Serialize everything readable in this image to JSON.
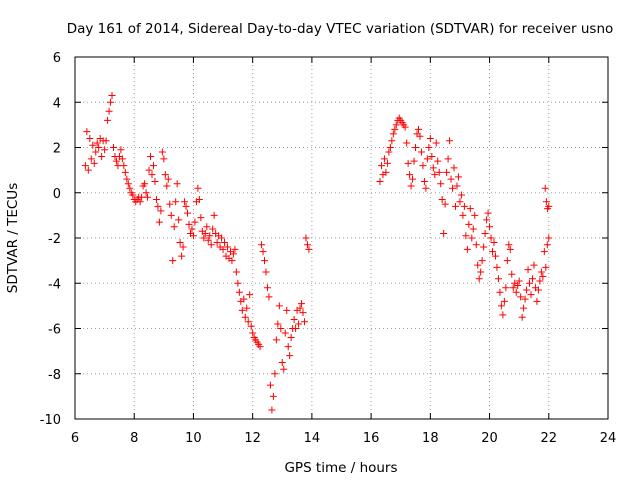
{
  "chart_data": {
    "type": "scatter",
    "title": "Day 161 of 2014, Sidereal Day-to-day VTEC variation (SDTVAR) for receiver usno",
    "xlabel": "GPS time / hours",
    "ylabel": "SDTVAR / TECUs",
    "xlim": [
      6,
      24
    ],
    "ylim": [
      -10,
      6
    ],
    "xticks": [
      "6",
      "8",
      "10",
      "12",
      "14",
      "16",
      "18",
      "20",
      "22",
      "24"
    ],
    "yticks": [
      "-10",
      "-8",
      "-6",
      "-4",
      "-2",
      "0",
      "2",
      "4",
      "6"
    ],
    "grid": true,
    "marker": "+",
    "marker_color": "#ff0000",
    "series": [
      {
        "name": "SDTVAR",
        "points": [
          [
            6.35,
            1.2
          ],
          [
            6.4,
            2.7
          ],
          [
            6.45,
            1.0
          ],
          [
            6.5,
            2.4
          ],
          [
            6.55,
            1.5
          ],
          [
            6.6,
            2.1
          ],
          [
            6.65,
            1.3
          ],
          [
            6.7,
            1.8
          ],
          [
            6.75,
            2.2
          ],
          [
            6.8,
            2.0
          ],
          [
            6.85,
            2.4
          ],
          [
            6.9,
            1.6
          ],
          [
            6.95,
            2.3
          ],
          [
            7.0,
            1.9
          ],
          [
            7.05,
            2.3
          ],
          [
            7.1,
            3.2
          ],
          [
            7.15,
            3.6
          ],
          [
            7.2,
            4.0
          ],
          [
            7.25,
            4.3
          ],
          [
            7.3,
            2.0
          ],
          [
            7.35,
            1.6
          ],
          [
            7.4,
            1.4
          ],
          [
            7.45,
            1.2
          ],
          [
            7.5,
            1.6
          ],
          [
            7.55,
            1.9
          ],
          [
            7.6,
            1.5
          ],
          [
            7.65,
            1.2
          ],
          [
            7.7,
            0.9
          ],
          [
            7.75,
            0.6
          ],
          [
            7.8,
            0.4
          ],
          [
            7.85,
            0.2
          ],
          [
            7.9,
            0.0
          ],
          [
            7.95,
            -0.1
          ],
          [
            8.0,
            -0.3
          ],
          [
            8.05,
            -0.4
          ],
          [
            8.1,
            -0.3
          ],
          [
            8.15,
            -0.2
          ],
          [
            8.2,
            -0.4
          ],
          [
            8.25,
            -0.2
          ],
          [
            8.3,
            0.3
          ],
          [
            8.35,
            0.4
          ],
          [
            8.4,
            0.0
          ],
          [
            8.45,
            -0.2
          ],
          [
            8.5,
            1.0
          ],
          [
            8.55,
            1.6
          ],
          [
            8.6,
            0.8
          ],
          [
            8.65,
            1.2
          ],
          [
            8.7,
            0.5
          ],
          [
            8.75,
            -0.3
          ],
          [
            8.8,
            -0.6
          ],
          [
            8.85,
            -1.3
          ],
          [
            8.9,
            -0.8
          ],
          [
            8.95,
            1.8
          ],
          [
            9.0,
            1.5
          ],
          [
            9.05,
            0.8
          ],
          [
            9.1,
            0.3
          ],
          [
            9.15,
            0.6
          ],
          [
            9.2,
            -0.5
          ],
          [
            9.25,
            -1.0
          ],
          [
            9.3,
            -3.0
          ],
          [
            9.35,
            -1.5
          ],
          [
            9.4,
            -0.4
          ],
          [
            9.45,
            0.4
          ],
          [
            9.5,
            -1.2
          ],
          [
            9.55,
            -2.2
          ],
          [
            9.6,
            -2.8
          ],
          [
            9.65,
            -2.4
          ],
          [
            9.7,
            -0.4
          ],
          [
            9.75,
            -0.6
          ],
          [
            9.8,
            -0.9
          ],
          [
            9.85,
            -1.4
          ],
          [
            9.9,
            -1.8
          ],
          [
            9.95,
            -1.6
          ],
          [
            10.0,
            -1.9
          ],
          [
            10.05,
            -1.3
          ],
          [
            10.1,
            -0.4
          ],
          [
            10.15,
            0.2
          ],
          [
            10.2,
            -0.3
          ],
          [
            10.25,
            -1.1
          ],
          [
            10.3,
            -1.7
          ],
          [
            10.35,
            -2.0
          ],
          [
            10.4,
            -1.8
          ],
          [
            10.45,
            -1.5
          ],
          [
            10.5,
            -2.1
          ],
          [
            10.55,
            -1.9
          ],
          [
            10.6,
            -2.3
          ],
          [
            10.65,
            -1.6
          ],
          [
            10.7,
            -1.0
          ],
          [
            10.75,
            -1.8
          ],
          [
            10.8,
            -2.2
          ],
          [
            10.85,
            -1.9
          ],
          [
            10.9,
            -2.4
          ],
          [
            10.95,
            -2.0
          ],
          [
            11.0,
            -2.5
          ],
          [
            11.05,
            -2.2
          ],
          [
            11.1,
            -2.8
          ],
          [
            11.15,
            -2.4
          ],
          [
            11.2,
            -2.9
          ],
          [
            11.25,
            -2.6
          ],
          [
            11.3,
            -3.0
          ],
          [
            11.35,
            -2.7
          ],
          [
            11.4,
            -2.5
          ],
          [
            11.45,
            -3.5
          ],
          [
            11.5,
            -4.0
          ],
          [
            11.55,
            -4.4
          ],
          [
            11.6,
            -4.8
          ],
          [
            11.65,
            -5.2
          ],
          [
            11.7,
            -4.7
          ],
          [
            11.75,
            -5.5
          ],
          [
            11.8,
            -5.1
          ],
          [
            11.85,
            -5.7
          ],
          [
            11.9,
            -4.5
          ],
          [
            11.95,
            -5.9
          ],
          [
            12.0,
            -6.2
          ],
          [
            12.05,
            -6.4
          ],
          [
            12.1,
            -6.5
          ],
          [
            12.15,
            -6.6
          ],
          [
            12.2,
            -6.7
          ],
          [
            12.25,
            -6.8
          ],
          [
            12.3,
            -2.3
          ],
          [
            12.35,
            -2.6
          ],
          [
            12.4,
            -3.0
          ],
          [
            12.45,
            -3.5
          ],
          [
            12.5,
            -4.2
          ],
          [
            12.55,
            -4.6
          ],
          [
            12.6,
            -8.5
          ],
          [
            12.65,
            -9.6
          ],
          [
            12.7,
            -9.0
          ],
          [
            12.75,
            -8.0
          ],
          [
            12.8,
            -6.5
          ],
          [
            12.85,
            -5.8
          ],
          [
            12.9,
            -5.0
          ],
          [
            12.95,
            -6.0
          ],
          [
            13.0,
            -7.5
          ],
          [
            13.05,
            -7.8
          ],
          [
            13.1,
            -6.2
          ],
          [
            13.15,
            -5.2
          ],
          [
            13.2,
            -6.8
          ],
          [
            13.25,
            -7.2
          ],
          [
            13.3,
            -6.4
          ],
          [
            13.35,
            -6.0
          ],
          [
            13.4,
            -5.6
          ],
          [
            13.45,
            -6.0
          ],
          [
            13.5,
            -5.2
          ],
          [
            13.55,
            -5.8
          ],
          [
            13.6,
            -5.1
          ],
          [
            13.65,
            -4.9
          ],
          [
            13.7,
            -5.3
          ],
          [
            13.75,
            -5.7
          ],
          [
            13.8,
            -2.0
          ],
          [
            13.85,
            -2.3
          ],
          [
            13.9,
            -2.5
          ],
          [
            16.3,
            0.5
          ],
          [
            16.35,
            1.2
          ],
          [
            16.4,
            0.8
          ],
          [
            16.45,
            1.5
          ],
          [
            16.5,
            0.9
          ],
          [
            16.55,
            1.3
          ],
          [
            16.6,
            1.8
          ],
          [
            16.65,
            2.0
          ],
          [
            16.7,
            2.3
          ],
          [
            16.75,
            2.6
          ],
          [
            16.8,
            2.8
          ],
          [
            16.85,
            3.0
          ],
          [
            16.9,
            3.2
          ],
          [
            16.95,
            3.3
          ],
          [
            17.0,
            3.2
          ],
          [
            17.05,
            3.1
          ],
          [
            17.1,
            3.0
          ],
          [
            17.15,
            2.9
          ],
          [
            17.2,
            2.2
          ],
          [
            17.25,
            1.3
          ],
          [
            17.3,
            0.8
          ],
          [
            17.35,
            0.3
          ],
          [
            17.4,
            0.6
          ],
          [
            17.45,
            1.4
          ],
          [
            17.5,
            2.0
          ],
          [
            17.55,
            2.6
          ],
          [
            17.6,
            2.8
          ],
          [
            17.65,
            2.5
          ],
          [
            17.7,
            1.8
          ],
          [
            17.75,
            1.2
          ],
          [
            17.8,
            0.5
          ],
          [
            17.85,
            0.2
          ],
          [
            17.9,
            1.5
          ],
          [
            17.95,
            2.0
          ],
          [
            18.0,
            2.4
          ],
          [
            18.05,
            1.6
          ],
          [
            18.1,
            1.1
          ],
          [
            18.15,
            0.8
          ],
          [
            18.2,
            2.2
          ],
          [
            18.25,
            1.4
          ],
          [
            18.3,
            0.9
          ],
          [
            18.35,
            0.4
          ],
          [
            18.4,
            -0.3
          ],
          [
            18.45,
            -1.8
          ],
          [
            18.5,
            -0.5
          ],
          [
            18.55,
            0.9
          ],
          [
            18.6,
            1.5
          ],
          [
            18.65,
            2.3
          ],
          [
            18.7,
            0.6
          ],
          [
            18.75,
            0.2
          ],
          [
            18.8,
            1.1
          ],
          [
            18.85,
            -0.6
          ],
          [
            18.9,
            0.3
          ],
          [
            18.95,
            0.7
          ],
          [
            19.0,
            -0.4
          ],
          [
            19.05,
            -0.1
          ],
          [
            19.1,
            -1.0
          ],
          [
            19.15,
            -0.6
          ],
          [
            19.2,
            -1.9
          ],
          [
            19.25,
            -2.5
          ],
          [
            19.3,
            -1.4
          ],
          [
            19.35,
            -0.7
          ],
          [
            19.4,
            -2.0
          ],
          [
            19.45,
            -1.6
          ],
          [
            19.5,
            -1.0
          ],
          [
            19.55,
            -2.3
          ],
          [
            19.6,
            -3.2
          ],
          [
            19.65,
            -3.8
          ],
          [
            19.7,
            -3.5
          ],
          [
            19.75,
            -3.0
          ],
          [
            19.8,
            -2.4
          ],
          [
            19.85,
            -1.8
          ],
          [
            19.9,
            -1.2
          ],
          [
            19.95,
            -0.9
          ],
          [
            20.0,
            -1.5
          ],
          [
            20.05,
            -2.0
          ],
          [
            20.1,
            -2.6
          ],
          [
            20.15,
            -2.2
          ],
          [
            20.2,
            -2.8
          ],
          [
            20.25,
            -3.3
          ],
          [
            20.3,
            -3.8
          ],
          [
            20.35,
            -4.4
          ],
          [
            20.4,
            -5.0
          ],
          [
            20.45,
            -5.4
          ],
          [
            20.5,
            -4.8
          ],
          [
            20.55,
            -4.2
          ],
          [
            20.6,
            -3.0
          ],
          [
            20.65,
            -2.3
          ],
          [
            20.7,
            -2.5
          ],
          [
            20.75,
            -3.6
          ],
          [
            20.8,
            -4.2
          ],
          [
            20.85,
            -4.0
          ],
          [
            20.9,
            -4.4
          ],
          [
            20.95,
            -4.1
          ],
          [
            21.0,
            -3.9
          ],
          [
            21.05,
            -4.6
          ],
          [
            21.1,
            -5.5
          ],
          [
            21.15,
            -5.1
          ],
          [
            21.2,
            -4.7
          ],
          [
            21.25,
            -4.3
          ],
          [
            21.3,
            -3.4
          ],
          [
            21.35,
            -4.0
          ],
          [
            21.4,
            -4.5
          ],
          [
            21.45,
            -3.8
          ],
          [
            21.5,
            -3.2
          ],
          [
            21.55,
            -4.2
          ],
          [
            21.6,
            -4.8
          ],
          [
            21.65,
            -4.3
          ],
          [
            21.7,
            -3.9
          ],
          [
            21.75,
            -3.5
          ],
          [
            21.8,
            -3.7
          ],
          [
            21.85,
            -2.6
          ],
          [
            21.9,
            -3.3
          ],
          [
            21.95,
            -2.3
          ],
          [
            22.0,
            -2.0
          ],
          [
            21.88,
            0.2
          ],
          [
            21.92,
            -0.4
          ],
          [
            21.96,
            -0.7
          ],
          [
            22.0,
            -0.6
          ]
        ]
      }
    ]
  }
}
